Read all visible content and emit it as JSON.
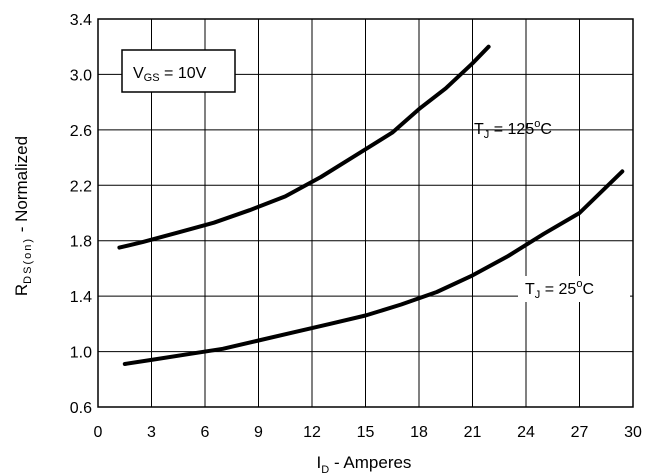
{
  "chart_data": {
    "type": "line",
    "title": "",
    "xlabel": {
      "main": "I",
      "sub": "D",
      "rest": " - Amperes"
    },
    "ylabel": {
      "main": "R",
      "sub": "DS(on)",
      "rest": " - Normalized"
    },
    "xlim": [
      0,
      30
    ],
    "ylim": [
      0.6,
      3.4
    ],
    "x_ticks": [
      "0",
      "3",
      "6",
      "9",
      "12",
      "15",
      "18",
      "21",
      "24",
      "27",
      "30"
    ],
    "y_ticks": [
      "0.6",
      "1.0",
      "1.4",
      "1.8",
      "2.2",
      "2.6",
      "3.0",
      "3.4"
    ],
    "grid": true,
    "series": [
      {
        "name": "T_J = 125°C",
        "x": [
          1.2,
          2.5,
          4.5,
          6.5,
          8.5,
          10.5,
          12.5,
          14.5,
          16.5,
          18,
          19.5,
          21,
          21.9
        ],
        "y": [
          1.75,
          1.79,
          1.86,
          1.93,
          2.02,
          2.12,
          2.26,
          2.42,
          2.58,
          2.75,
          2.9,
          3.08,
          3.2
        ]
      },
      {
        "name": "T_J = 25°C",
        "x": [
          1.5,
          3,
          5,
          7,
          9,
          11,
          13,
          15,
          17,
          19,
          21,
          23,
          25,
          27,
          29.4
        ],
        "y": [
          0.91,
          0.94,
          0.98,
          1.02,
          1.08,
          1.14,
          1.2,
          1.26,
          1.34,
          1.43,
          1.55,
          1.69,
          1.85,
          2.0,
          2.3
        ]
      }
    ],
    "annotations": [
      {
        "main": "V",
        "sub": "GS",
        "rest": " = 10V",
        "boxed": true
      },
      {
        "main": "T",
        "sub": "J",
        "rest": " = 125",
        "sup": "o",
        "tail": "C"
      },
      {
        "main": "T",
        "sub": "J",
        "rest": " = 25",
        "sup": "o",
        "tail": "C"
      }
    ]
  }
}
